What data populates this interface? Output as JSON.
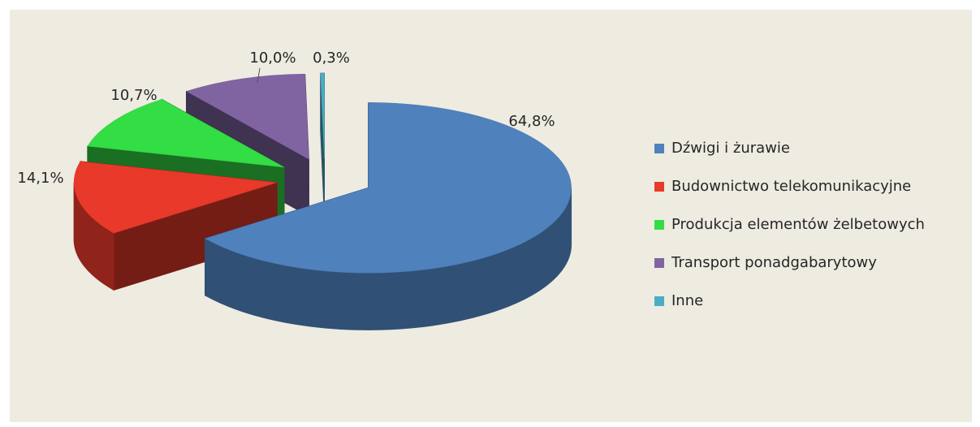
{
  "chart_data": {
    "type": "pie",
    "categories": [
      "Dźwigi i żurawie",
      "Budownictwo telekomunikacyjne",
      "Produkcja elementów żelbetowych",
      "Transport ponadgabarytowy",
      "Inne"
    ],
    "values": [
      64.8,
      14.1,
      10.7,
      10.0,
      0.3
    ],
    "value_labels": [
      "64,8%",
      "14,1%",
      "10,7%",
      "10,0%",
      "0,3%"
    ],
    "colors": [
      "#4f81bd",
      "#e8392a",
      "#33dd44",
      "#8064a2",
      "#4bacc6"
    ],
    "legend": "right"
  }
}
